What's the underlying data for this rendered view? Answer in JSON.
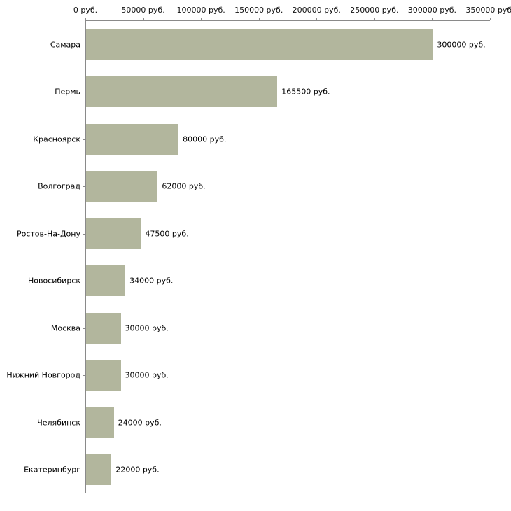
{
  "chart_data": {
    "type": "bar",
    "orientation": "horizontal",
    "unit": "руб.",
    "categories": [
      "Самара",
      "Пермь",
      "Красноярск",
      "Волгоград",
      "Ростов-На-Дону",
      "Новосибирск",
      "Москва",
      "Нижний Новгород",
      "Челябинск",
      "Екатеринбург"
    ],
    "values": [
      300000,
      165500,
      80000,
      62000,
      47500,
      34000,
      30000,
      30000,
      24000,
      22000
    ],
    "value_labels": [
      "300000 руб.",
      "165500 руб.",
      "80000 руб.",
      "62000 руб.",
      "47500 руб.",
      "34000 руб.",
      "30000 руб.",
      "30000 руб.",
      "24000 руб.",
      "22000 руб."
    ],
    "x_ticks": [
      0,
      50000,
      100000,
      150000,
      200000,
      250000,
      300000,
      350000
    ],
    "x_tick_labels": [
      "0 руб.",
      "50000 руб.",
      "100000 руб.",
      "150000 руб.",
      "200000 руб.",
      "250000 руб.",
      "300000 руб.",
      "350000 руб."
    ],
    "xlim": [
      0,
      350000
    ],
    "grid": false,
    "legend": "none",
    "axis_position": "top",
    "bar_color": "#b2b69d",
    "axis_color": "#8a8a8a",
    "label_color": "#000000"
  }
}
